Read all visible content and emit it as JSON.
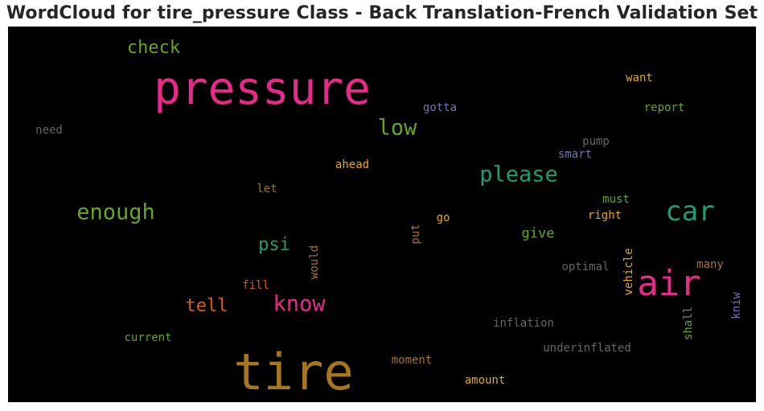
{
  "chart_data": {
    "type": "wordcloud",
    "title": "WordCloud for tire_pressure Class - Back Translation-French Validation Set",
    "background": "#000000",
    "colormap": "Dark2",
    "words": [
      {
        "text": "pressure",
        "color": "#e7298a",
        "rel_size": 1.0
      },
      {
        "text": "tire",
        "color": "#a6761d",
        "rel_size": 1.0
      },
      {
        "text": "air",
        "color": "#e7298a",
        "rel_size": 0.72
      },
      {
        "text": "car",
        "color": "#1b9e77",
        "rel_size": 0.55
      },
      {
        "text": "please",
        "color": "#1b9e77",
        "rel_size": 0.45
      },
      {
        "text": "low",
        "color": "#66a61e",
        "rel_size": 0.45
      },
      {
        "text": "enough",
        "color": "#66a61e",
        "rel_size": 0.45
      },
      {
        "text": "know",
        "color": "#e7298a",
        "rel_size": 0.45
      },
      {
        "text": "check",
        "color": "#66a61e",
        "rel_size": 0.38
      },
      {
        "text": "tell",
        "color": "#d95f02",
        "rel_size": 0.38
      },
      {
        "text": "psi",
        "color": "#1b9e77",
        "rel_size": 0.38
      },
      {
        "text": "give",
        "color": "#66a61e",
        "rel_size": 0.3
      },
      {
        "text": "want",
        "color": "#e6ab02",
        "rel_size": 0.2
      },
      {
        "text": "report",
        "color": "#66a61e",
        "rel_size": 0.2
      },
      {
        "text": "gotta",
        "color": "#7570b3",
        "rel_size": 0.2
      },
      {
        "text": "need",
        "color": "#666666",
        "rel_size": 0.2
      },
      {
        "text": "pump",
        "color": "#666666",
        "rel_size": 0.2
      },
      {
        "text": "smart",
        "color": "#7570b3",
        "rel_size": 0.2
      },
      {
        "text": "ahead",
        "color": "#e6ab02",
        "rel_size": 0.2
      },
      {
        "text": "let",
        "color": "#a6761d",
        "rel_size": 0.2
      },
      {
        "text": "must",
        "color": "#66a61e",
        "rel_size": 0.2
      },
      {
        "text": "go",
        "color": "#e6ab02",
        "rel_size": 0.2
      },
      {
        "text": "right",
        "color": "#e6ab02",
        "rel_size": 0.2
      },
      {
        "text": "put",
        "color": "#a6761d",
        "rel_size": 0.2
      },
      {
        "text": "would",
        "color": "#a6761d",
        "rel_size": 0.2
      },
      {
        "text": "optimal",
        "color": "#666666",
        "rel_size": 0.2
      },
      {
        "text": "vehicle",
        "color": "#e6ab02",
        "rel_size": 0.2
      },
      {
        "text": "many",
        "color": "#a6761d",
        "rel_size": 0.2
      },
      {
        "text": "fill",
        "color": "#d95f02",
        "rel_size": 0.2
      },
      {
        "text": "kniw",
        "color": "#7570b3",
        "rel_size": 0.2
      },
      {
        "text": "shall",
        "color": "#66a61e",
        "rel_size": 0.2
      },
      {
        "text": "inflation",
        "color": "#666666",
        "rel_size": 0.2
      },
      {
        "text": "current",
        "color": "#66a61e",
        "rel_size": 0.2
      },
      {
        "text": "underinflated",
        "color": "#666666",
        "rel_size": 0.2
      },
      {
        "text": "moment",
        "color": "#a6761d",
        "rel_size": 0.2
      },
      {
        "text": "amount",
        "color": "#e6ab02",
        "rel_size": 0.2
      }
    ]
  }
}
